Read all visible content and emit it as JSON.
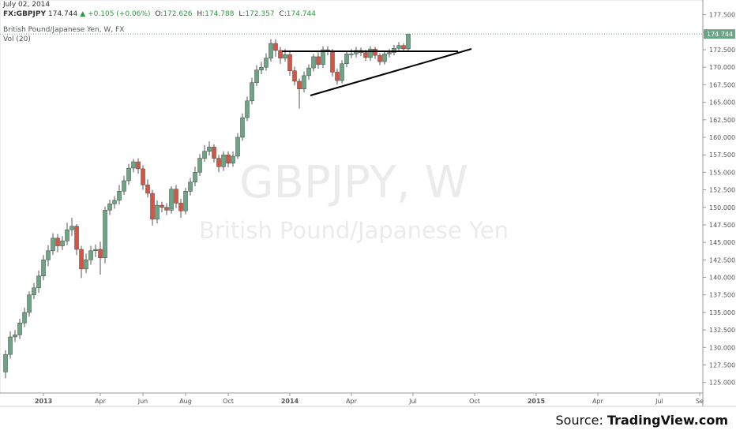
{
  "chart_data": {
    "type": "candlestick",
    "date": "July 02, 2014",
    "symbol": "FX:GBPJPY",
    "last": "174.744",
    "change": "+0.105 (+0.06%)",
    "ohlc_labels": {
      "o": "O:",
      "o_val": "172.626",
      "h": "H:",
      "h_val": "174.788",
      "l": "L:",
      "l_val": "172.357",
      "c": "C:",
      "c_val": "174.744"
    },
    "series_title": "British Pound/Japanese Yen, W, FX",
    "indicator": "Vol (20)",
    "watermark": "GBPJPY, W",
    "watermark_sub": "British Pound/Japanese Yen",
    "source_prefix": "Source:",
    "source": "TradingView.com",
    "up_color": "#6ba583",
    "down_color": "#d75442",
    "open": [
      126.5,
      129.0,
      131.5,
      131.8,
      133.5,
      135.0,
      137.5,
      138.5,
      140.2,
      142.5,
      143.8,
      145.6,
      144.5,
      145.2,
      146.8,
      147.3,
      144.0,
      141.2,
      142.5,
      143.8,
      144.0,
      142.8,
      149.6,
      150.5,
      151.0,
      152.3,
      153.8,
      155.6,
      156.5,
      155.5,
      153.2,
      152.0,
      148.3,
      150.3,
      150.0,
      149.6,
      152.6,
      150.6,
      149.5,
      152.3,
      153.6,
      155.0,
      157.0,
      158.0,
      158.6,
      157.0,
      155.8,
      157.5,
      156.3,
      157.3,
      160.0,
      162.8,
      165.2,
      167.8,
      169.6,
      170.0,
      171.3,
      173.4,
      172.4,
      171.3,
      171.8,
      169.5,
      168.0,
      166.9,
      168.8,
      169.9,
      171.5,
      170.4,
      172.5,
      172.3,
      169.3,
      168.1,
      170.5,
      171.9,
      171.9,
      172.4,
      172.1,
      171.4,
      172.6,
      171.7,
      170.8,
      171.9,
      172.1,
      172.7,
      173.1,
      172.626
    ],
    "high": [
      129.6,
      132.3,
      132.5,
      134.1,
      135.7,
      138.0,
      139.2,
      141.0,
      143.2,
      144.6,
      146.3,
      146.2,
      145.9,
      147.8,
      148.5,
      147.6,
      144.5,
      143.4,
      144.5,
      144.7,
      145.1,
      150.1,
      151.1,
      151.6,
      153.2,
      154.5,
      156.2,
      156.9,
      157.0,
      156.0,
      154.0,
      152.5,
      151.0,
      150.8,
      150.6,
      153.0,
      153.2,
      151.2,
      152.8,
      154.2,
      155.8,
      157.6,
      158.9,
      159.4,
      159.0,
      157.5,
      158.0,
      158.0,
      158.0,
      160.6,
      163.4,
      165.8,
      168.5,
      170.3,
      170.8,
      172.0,
      174.0,
      174.0,
      172.9,
      172.6,
      172.2,
      170.1,
      168.4,
      169.4,
      170.4,
      171.9,
      172.1,
      173.0,
      173.0,
      172.6,
      169.8,
      171.0,
      172.3,
      172.6,
      172.9,
      172.8,
      172.5,
      173.0,
      172.9,
      172.0,
      172.2,
      172.6,
      173.2,
      173.6,
      173.4,
      174.788
    ],
    "low": [
      125.6,
      128.4,
      130.8,
      131.2,
      132.9,
      134.4,
      136.9,
      137.8,
      139.6,
      141.6,
      143.2,
      143.6,
      143.9,
      144.6,
      145.9,
      143.2,
      139.9,
      140.6,
      141.8,
      142.9,
      140.4,
      142.0,
      148.9,
      149.8,
      150.4,
      151.8,
      153.2,
      155.0,
      154.8,
      152.5,
      151.4,
      147.4,
      147.7,
      149.3,
      148.9,
      149.1,
      149.9,
      148.5,
      149.0,
      151.7,
      153.0,
      154.5,
      156.5,
      157.4,
      156.4,
      155.0,
      155.2,
      155.7,
      155.8,
      156.9,
      159.5,
      162.3,
      164.7,
      167.3,
      169.0,
      169.5,
      170.8,
      171.5,
      170.5,
      170.8,
      168.8,
      167.4,
      164.1,
      166.4,
      168.2,
      169.4,
      169.8,
      169.9,
      171.7,
      168.7,
      167.5,
      167.7,
      170.0,
      171.3,
      171.4,
      171.6,
      170.9,
      170.9,
      171.2,
      170.3,
      170.4,
      171.4,
      171.7,
      172.3,
      172.2,
      172.357
    ],
    "close": [
      129.0,
      131.5,
      131.8,
      133.5,
      135.0,
      137.5,
      138.5,
      140.2,
      142.5,
      143.8,
      145.6,
      144.5,
      145.2,
      146.8,
      147.3,
      144.0,
      141.2,
      142.5,
      143.8,
      144.0,
      142.8,
      149.6,
      150.5,
      151.0,
      152.3,
      153.8,
      155.6,
      156.5,
      155.5,
      153.2,
      152.0,
      148.3,
      150.3,
      150.0,
      149.6,
      152.6,
      150.6,
      149.5,
      152.3,
      153.6,
      155.0,
      157.0,
      158.0,
      158.6,
      157.0,
      155.8,
      157.5,
      156.3,
      157.3,
      160.0,
      162.8,
      165.2,
      167.8,
      169.6,
      170.0,
      171.3,
      173.4,
      172.4,
      171.3,
      171.8,
      169.5,
      168.0,
      166.9,
      168.8,
      169.9,
      171.5,
      170.4,
      172.5,
      172.3,
      169.3,
      168.1,
      170.5,
      171.9,
      171.9,
      172.4,
      172.1,
      171.4,
      172.6,
      171.7,
      170.8,
      171.9,
      172.1,
      172.7,
      173.1,
      172.626,
      174.744
    ],
    "last_value": 174.744,
    "xlim": [
      -1.17,
      147.17
    ],
    "xticks": [
      {
        "value": 8,
        "label": "2013"
      },
      {
        "value": 20,
        "label": "Apr"
      },
      {
        "value": 29,
        "label": "Jun"
      },
      {
        "value": 38,
        "label": "Aug"
      },
      {
        "value": 47,
        "label": "Oct"
      },
      {
        "value": 60,
        "label": "2014"
      },
      {
        "value": 73,
        "label": "Apr"
      },
      {
        "value": 86,
        "label": "Jul"
      },
      {
        "value": 99,
        "label": "Oct"
      },
      {
        "value": 112,
        "label": "2015"
      },
      {
        "value": 125,
        "label": "Apr"
      },
      {
        "value": 138,
        "label": "Jul"
      },
      {
        "value": 146.5,
        "label": "Se"
      }
    ],
    "ylim": [
      123.5,
      179.6
    ],
    "yticks": [
      {
        "value": 125,
        "label": "125.000"
      },
      {
        "value": 127.5,
        "label": "127.500"
      },
      {
        "value": 130,
        "label": "130.000"
      },
      {
        "value": 132.5,
        "label": "132.500"
      },
      {
        "value": 135,
        "label": "135.000"
      },
      {
        "value": 137.5,
        "label": "137.500"
      },
      {
        "value": 140,
        "label": "140.000"
      },
      {
        "value": 142.5,
        "label": "142.500"
      },
      {
        "value": 145,
        "label": "145.000"
      },
      {
        "value": 147.5,
        "label": "147.500"
      },
      {
        "value": 150,
        "label": "150.000"
      },
      {
        "value": 152.5,
        "label": "152.500"
      },
      {
        "value": 155,
        "label": "155.000"
      },
      {
        "value": 157.5,
        "label": "157.500"
      },
      {
        "value": 160,
        "label": "160.000"
      },
      {
        "value": 162.5,
        "label": "162.500"
      },
      {
        "value": 165,
        "label": "165.000"
      },
      {
        "value": 167.5,
        "label": "167.500"
      },
      {
        "value": 170,
        "label": "170.000"
      },
      {
        "value": 172.5,
        "label": "172.500"
      },
      {
        "value": 175,
        "label": "175.000"
      },
      {
        "value": 177.5,
        "label": "177.500"
      }
    ]
  }
}
